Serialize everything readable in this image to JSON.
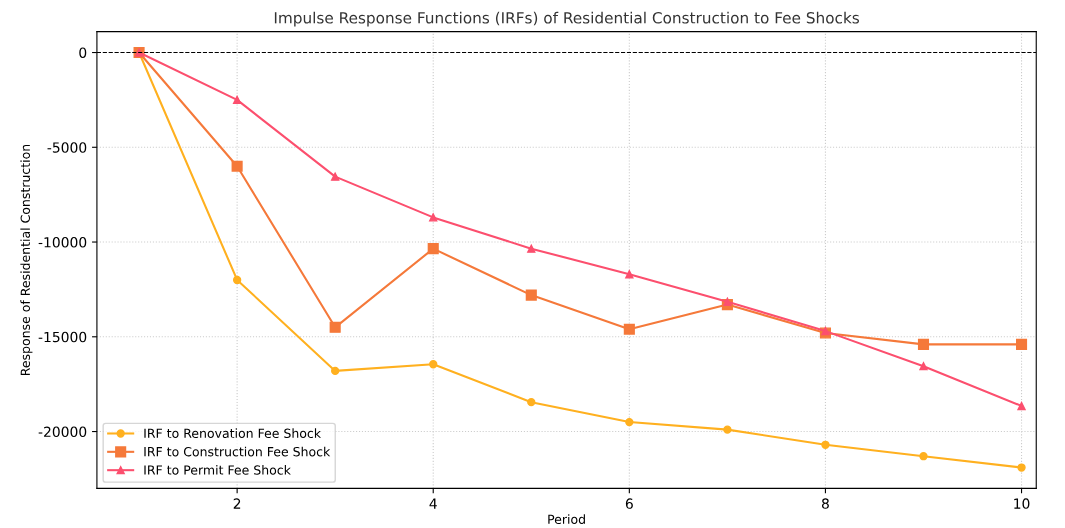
{
  "chart_data": {
    "type": "line",
    "title": "Impulse Response Functions (IRFs) of Residential Construction to Fee Shocks",
    "xlabel": "Period",
    "ylabel": "Response of Residential Construction",
    "x": [
      1,
      2,
      3,
      4,
      5,
      6,
      7,
      8,
      9,
      10
    ],
    "series": [
      {
        "name": "IRF to Renovation Fee Shock",
        "color": "#ffb01f",
        "marker": "circle",
        "values": [
          0,
          -12000,
          -16800,
          -16450,
          -18450,
          -19500,
          -19900,
          -20700,
          -21300,
          -21900
        ]
      },
      {
        "name": "IRF to Construction Fee Shock",
        "color": "#f5793a",
        "marker": "square",
        "values": [
          0,
          -6000,
          -14500,
          -10350,
          -12800,
          -14600,
          -13300,
          -14800,
          -15400,
          -15400
        ]
      },
      {
        "name": "IRF to Permit Fee Shock",
        "color": "#fc4f6e",
        "marker": "triangle",
        "values": [
          0,
          -2500,
          -6550,
          -8700,
          -10350,
          -11700,
          -13150,
          -14700,
          -16550,
          -18650
        ]
      }
    ],
    "xlim": [
      0.57,
      10.15
    ],
    "xticks": [
      2,
      4,
      6,
      8,
      10
    ],
    "ylim": [
      -23000,
      1100
    ],
    "yticks": [
      0,
      -5000,
      -10000,
      -15000,
      -20000
    ],
    "ref_lines": [
      {
        "axis": "y",
        "value": 0,
        "color": "#000000",
        "line_style": "dashed"
      }
    ],
    "grid": true,
    "legend": "bottom left",
    "line_style": "solid"
  }
}
